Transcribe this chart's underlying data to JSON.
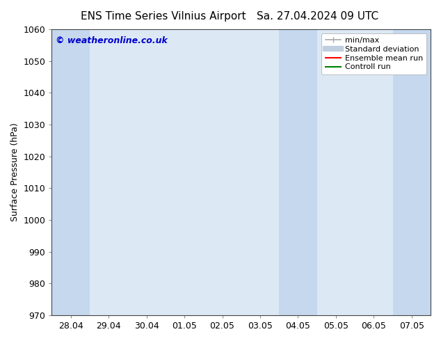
{
  "title_left": "ENS Time Series Vilnius Airport",
  "title_right": "Sa. 27.04.2024 09 UTC",
  "ylabel": "Surface Pressure (hPa)",
  "watermark": "© weatheronline.co.uk",
  "ylim": [
    970,
    1060
  ],
  "yticks": [
    970,
    980,
    990,
    1000,
    1010,
    1020,
    1030,
    1040,
    1050,
    1060
  ],
  "xtick_labels": [
    "28.04",
    "29.04",
    "30.04",
    "01.05",
    "02.05",
    "03.05",
    "04.05",
    "05.05",
    "06.05",
    "07.05"
  ],
  "xtick_positions": [
    0,
    1,
    2,
    3,
    4,
    5,
    6,
    7,
    8,
    9
  ],
  "xlim": [
    -0.5,
    9.5
  ],
  "plot_bg_color": "#dce9f5",
  "shaded_bands": [
    {
      "x_start": -0.5,
      "x_end": 0.5
    },
    {
      "x_start": 5.5,
      "x_end": 6.5
    },
    {
      "x_start": 8.5,
      "x_end": 9.5
    }
  ],
  "shaded_color": "#c5d8ed",
  "background_color": "#ffffff",
  "legend_entries": [
    {
      "label": "min/max",
      "color": "#a8a8a8",
      "style": "hline"
    },
    {
      "label": "Standard deviation",
      "color": "#c0cfe0",
      "style": "band"
    },
    {
      "label": "Ensemble mean run",
      "color": "#ff0000",
      "style": "line"
    },
    {
      "label": "Controll run",
      "color": "#008000",
      "style": "line"
    }
  ],
  "title_fontsize": 11,
  "axis_fontsize": 9,
  "watermark_color": "#0000cc",
  "watermark_fontsize": 9,
  "legend_fontsize": 8
}
